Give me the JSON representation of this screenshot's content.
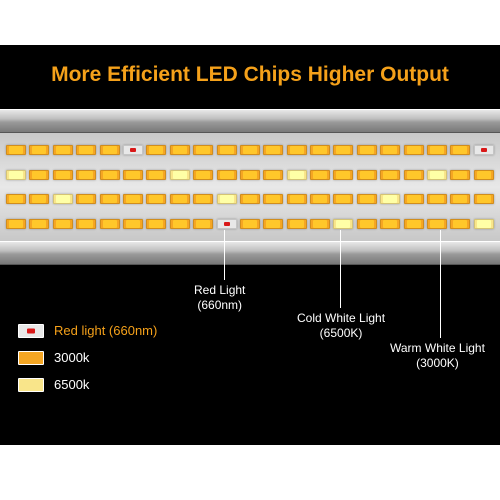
{
  "title": {
    "text": "More Efficient LED Chips Higher Output",
    "color": "#f5a11a"
  },
  "chip_colors": {
    "warm": "#f5a623",
    "cold": "#f9e58a",
    "red_body": "#e8e8e8",
    "red_dot": "#d91818"
  },
  "chip_grid": {
    "rows": 4,
    "cols": 21,
    "layout": [
      [
        "warm",
        "warm",
        "warm",
        "warm",
        "warm",
        "red",
        "warm",
        "warm",
        "warm",
        "warm",
        "warm",
        "warm",
        "warm",
        "warm",
        "warm",
        "warm",
        "warm",
        "warm",
        "warm",
        "warm",
        "red"
      ],
      [
        "cold",
        "warm",
        "warm",
        "warm",
        "warm",
        "warm",
        "warm",
        "cold",
        "warm",
        "warm",
        "warm",
        "warm",
        "cold",
        "warm",
        "warm",
        "warm",
        "warm",
        "warm",
        "cold",
        "warm",
        "warm"
      ],
      [
        "warm",
        "warm",
        "cold",
        "warm",
        "warm",
        "warm",
        "warm",
        "warm",
        "warm",
        "cold",
        "warm",
        "warm",
        "warm",
        "warm",
        "warm",
        "warm",
        "cold",
        "warm",
        "warm",
        "warm",
        "warm"
      ],
      [
        "warm",
        "warm",
        "warm",
        "warm",
        "warm",
        "warm",
        "warm",
        "warm",
        "warm",
        "red",
        "warm",
        "warm",
        "warm",
        "warm",
        "cold",
        "warm",
        "warm",
        "warm",
        "warm",
        "warm",
        "cold"
      ]
    ]
  },
  "callouts": {
    "red": {
      "line1": "Red Light",
      "line2": "(660nm)"
    },
    "cold": {
      "line1": "Cold White Light",
      "line2": "(6500K)"
    },
    "warm": {
      "line1": "Warm White Light",
      "line2": "(3000K)"
    }
  },
  "legend": {
    "red": "Red light (660nm)",
    "warm": "3000k",
    "cold": "6500k"
  }
}
